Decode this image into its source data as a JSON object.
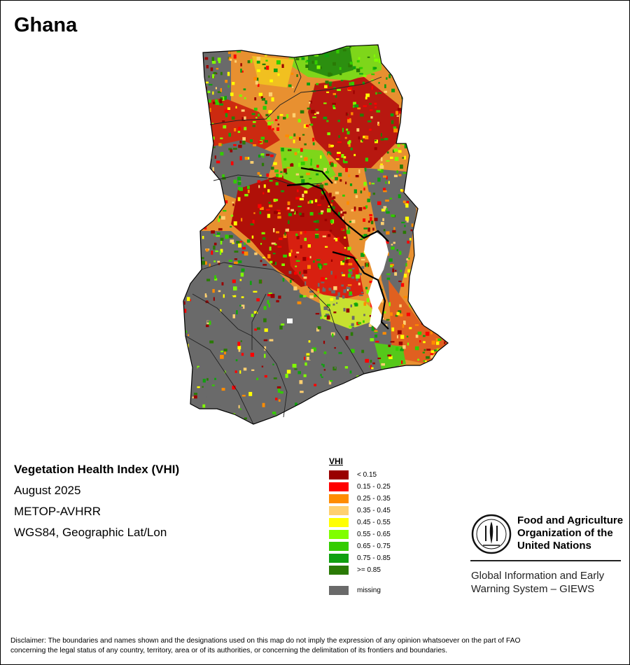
{
  "map": {
    "title": "Ghana",
    "info_heading": "Vegetation Health Index (VHI)",
    "date": "August 2025",
    "sensor": "METOP-AVHRR",
    "projection": "WGS84, Geographic Lat/Lon"
  },
  "legend": {
    "title": "VHI",
    "classes": [
      {
        "label": "< 0.15",
        "color": "#990000"
      },
      {
        "label": "0.15 - 0.25",
        "color": "#ff0000"
      },
      {
        "label": "0.25 - 0.35",
        "color": "#ff8c00"
      },
      {
        "label": "0.35 - 0.45",
        "color": "#ffd070"
      },
      {
        "label": "0.45 - 0.55",
        "color": "#ffff00"
      },
      {
        "label": "0.55 - 0.65",
        "color": "#80ff00"
      },
      {
        "label": "0.65 - 0.75",
        "color": "#33cc00"
      },
      {
        "label": "0.75 - 0.85",
        "color": "#10a010"
      },
      {
        "label": ">= 0.85",
        "color": "#2a7a05"
      }
    ],
    "missing": {
      "label": "missing",
      "color": "#6a6a6a"
    }
  },
  "fao": {
    "logo_icon": "fao-emblem-icon",
    "name_line1": "Food and Agriculture",
    "name_line2": "Organization of the",
    "name_line3": "United Nations",
    "system_line1": "Global Information and Early",
    "system_line2": "Warning System – GIEWS"
  },
  "disclaimer": {
    "line1": "Disclaimer: The boundaries and names shown and the designations used on this map do not imply the expression of any opinion whatsoever on the part of FAO",
    "line2": "concerning the legal status of any country, territory, area or of its authorities, or concerning the delimitation of its frontiers and boundaries."
  }
}
